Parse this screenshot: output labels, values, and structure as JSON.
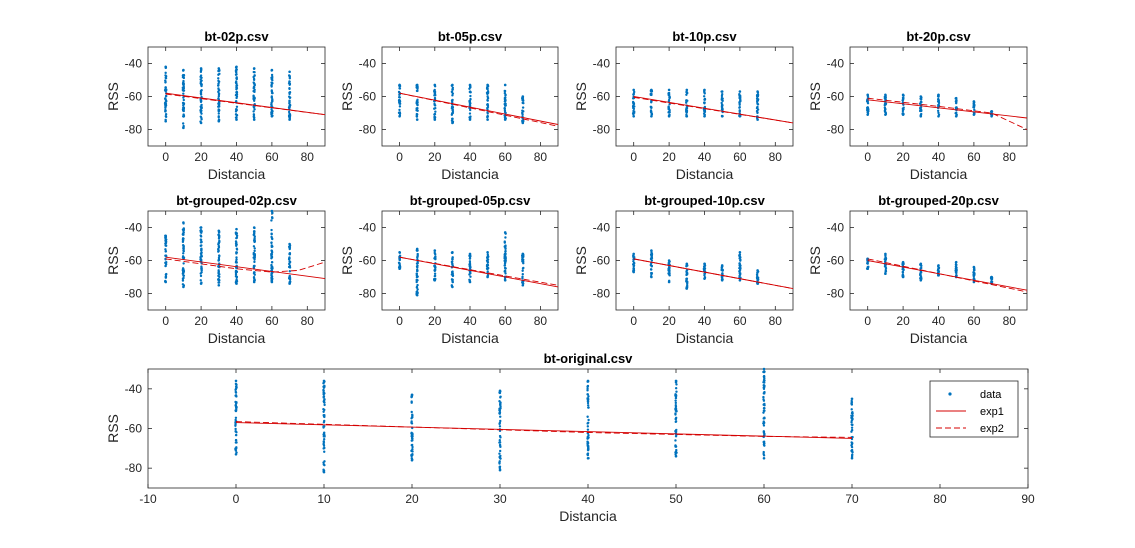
{
  "colors": {
    "data": "#0072bd",
    "exp1": "#d40000",
    "exp2": "#d40000",
    "axis": "#262626"
  },
  "legend": {
    "items": [
      "data",
      "exp1",
      "exp2"
    ],
    "position": "top-right"
  },
  "chart_data": [
    {
      "type": "scatter",
      "title": "bt-02p.csv",
      "xlabel": "Distancia",
      "ylabel": "RSS",
      "xlim": [
        -10,
        90
      ],
      "ylim": [
        -90,
        -30
      ],
      "xticks": [
        "0",
        "20",
        "40",
        "60",
        "80"
      ],
      "xtick_values": [
        0,
        20,
        40,
        60,
        80
      ],
      "yticks": [
        "-40",
        "-60",
        "-80"
      ],
      "ytick_values": [
        -40,
        -60,
        -80
      ],
      "points": [
        [
          0,
          -42,
          -75
        ],
        [
          10,
          -44,
          -79
        ],
        [
          20,
          -43,
          -76
        ],
        [
          30,
          -43,
          -75
        ],
        [
          40,
          -42,
          -74
        ],
        [
          50,
          -43,
          -74
        ],
        [
          60,
          -44,
          -72
        ],
        [
          70,
          -45,
          -74
        ]
      ],
      "series": [
        {
          "name": "exp1",
          "values": [
            [
              0,
              -58
            ],
            [
              90,
              -71
            ]
          ]
        },
        {
          "name": "exp2",
          "values": [
            [
              0,
              -58.5
            ],
            [
              90,
              -71
            ]
          ]
        }
      ]
    },
    {
      "type": "scatter",
      "title": "bt-05p.csv",
      "xlabel": "Distancia",
      "ylabel": "RSS",
      "xlim": [
        -10,
        90
      ],
      "ylim": [
        -90,
        -30
      ],
      "xticks": [
        "0",
        "20",
        "40",
        "60",
        "80"
      ],
      "xtick_values": [
        0,
        20,
        40,
        60,
        80
      ],
      "yticks": [
        "-40",
        "-60",
        "-80"
      ],
      "ytick_values": [
        -40,
        -60,
        -80
      ],
      "points": [
        [
          0,
          -53,
          -72
        ],
        [
          10,
          -53,
          -74
        ],
        [
          20,
          -53,
          -74
        ],
        [
          30,
          -53,
          -76
        ],
        [
          40,
          -53,
          -74
        ],
        [
          50,
          -53,
          -74
        ],
        [
          60,
          -53,
          -74
        ],
        [
          70,
          -60,
          -76
        ]
      ],
      "series": [
        {
          "name": "exp1",
          "values": [
            [
              0,
              -58
            ],
            [
              90,
              -77
            ]
          ]
        },
        {
          "name": "exp2",
          "values": [
            [
              0,
              -58
            ],
            [
              90,
              -78
            ]
          ]
        }
      ]
    },
    {
      "type": "scatter",
      "title": "bt-10p.csv",
      "xlabel": "Distancia",
      "ylabel": "RSS",
      "xlim": [
        -10,
        90
      ],
      "ylim": [
        -90,
        -30
      ],
      "xticks": [
        "0",
        "20",
        "40",
        "60",
        "80"
      ],
      "xtick_values": [
        0,
        20,
        40,
        60,
        80
      ],
      "yticks": [
        "-40",
        "-60",
        "-80"
      ],
      "ytick_values": [
        -40,
        -60,
        -80
      ],
      "points": [
        [
          0,
          -56,
          -72
        ],
        [
          10,
          -56,
          -72
        ],
        [
          20,
          -56,
          -72
        ],
        [
          30,
          -56,
          -72
        ],
        [
          40,
          -56,
          -72
        ],
        [
          50,
          -57,
          -72
        ],
        [
          60,
          -57,
          -72
        ],
        [
          70,
          -57,
          -74
        ]
      ],
      "series": [
        {
          "name": "exp1",
          "values": [
            [
              0,
              -60
            ],
            [
              90,
              -76
            ]
          ]
        },
        {
          "name": "exp2",
          "values": [
            [
              0,
              -60.5
            ],
            [
              90,
              -76
            ]
          ]
        }
      ]
    },
    {
      "type": "scatter",
      "title": "bt-20p.csv",
      "xlabel": "Distancia",
      "ylabel": "RSS",
      "xlim": [
        -10,
        90
      ],
      "ylim": [
        -90,
        -30
      ],
      "xticks": [
        "0",
        "20",
        "40",
        "60",
        "80"
      ],
      "xtick_values": [
        0,
        20,
        40,
        60,
        80
      ],
      "yticks": [
        "-40",
        "-60",
        "-80"
      ],
      "ytick_values": [
        -40,
        -60,
        -80
      ],
      "points": [
        [
          0,
          -59,
          -71
        ],
        [
          10,
          -59,
          -71
        ],
        [
          20,
          -59,
          -71
        ],
        [
          30,
          -60,
          -72
        ],
        [
          40,
          -59,
          -72
        ],
        [
          50,
          -61,
          -72
        ],
        [
          60,
          -63,
          -71
        ],
        [
          70,
          -69,
          -72
        ]
      ],
      "series": [
        {
          "name": "exp1",
          "values": [
            [
              0,
              -62
            ],
            [
              90,
              -73
            ]
          ]
        },
        {
          "name": "exp2",
          "values": [
            [
              0,
              -61
            ],
            [
              40,
              -66
            ],
            [
              70,
              -70
            ],
            [
              90,
              -80
            ]
          ]
        }
      ]
    },
    {
      "type": "scatter",
      "title": "bt-grouped-02p.csv",
      "xlabel": "Distancia",
      "ylabel": "RSS",
      "xlim": [
        -10,
        90
      ],
      "ylim": [
        -90,
        -30
      ],
      "xticks": [
        "0",
        "20",
        "40",
        "60",
        "80"
      ],
      "xtick_values": [
        0,
        20,
        40,
        60,
        80
      ],
      "yticks": [
        "-40",
        "-60",
        "-80"
      ],
      "ytick_values": [
        -40,
        -60,
        -80
      ],
      "points": [
        [
          0,
          -45,
          -73
        ],
        [
          10,
          -37,
          -76
        ],
        [
          20,
          -40,
          -74
        ],
        [
          30,
          -42,
          -75
        ],
        [
          40,
          -41,
          -74
        ],
        [
          50,
          -40,
          -73
        ],
        [
          60,
          -30,
          -73
        ],
        [
          70,
          -50,
          -74
        ]
      ],
      "series": [
        {
          "name": "exp1",
          "values": [
            [
              0,
              -58
            ],
            [
              90,
              -71
            ]
          ]
        },
        {
          "name": "exp2",
          "values": [
            [
              0,
              -59
            ],
            [
              40,
              -65
            ],
            [
              60,
              -67
            ],
            [
              75,
              -66
            ],
            [
              90,
              -61
            ]
          ]
        }
      ]
    },
    {
      "type": "scatter",
      "title": "bt-grouped-05p.csv",
      "xlabel": "Distancia",
      "ylabel": "RSS",
      "xlim": [
        -10,
        90
      ],
      "ylim": [
        -90,
        -30
      ],
      "xticks": [
        "0",
        "20",
        "40",
        "60",
        "80"
      ],
      "xtick_values": [
        0,
        20,
        40,
        60,
        80
      ],
      "yticks": [
        "-40",
        "-60",
        "-80"
      ],
      "ytick_values": [
        -40,
        -60,
        -80
      ],
      "points": [
        [
          0,
          -55,
          -65
        ],
        [
          10,
          -53,
          -81
        ],
        [
          20,
          -54,
          -72
        ],
        [
          30,
          -55,
          -76
        ],
        [
          40,
          -56,
          -73
        ],
        [
          50,
          -55,
          -70
        ],
        [
          60,
          -43,
          -72
        ],
        [
          70,
          -56,
          -75
        ]
      ],
      "series": [
        {
          "name": "exp1",
          "values": [
            [
              0,
              -58
            ],
            [
              90,
              -76
            ]
          ]
        },
        {
          "name": "exp2",
          "values": [
            [
              0,
              -58
            ],
            [
              90,
              -75
            ]
          ]
        }
      ]
    },
    {
      "type": "scatter",
      "title": "bt-grouped-10p.csv",
      "xlabel": "Distancia",
      "ylabel": "RSS",
      "xlim": [
        -10,
        90
      ],
      "ylim": [
        -90,
        -30
      ],
      "xticks": [
        "0",
        "20",
        "40",
        "60",
        "80"
      ],
      "xtick_values": [
        0,
        20,
        40,
        60,
        80
      ],
      "yticks": [
        "-40",
        "-60",
        "-80"
      ],
      "ytick_values": [
        -40,
        -60,
        -80
      ],
      "points": [
        [
          0,
          -56,
          -67
        ],
        [
          10,
          -54,
          -70
        ],
        [
          20,
          -60,
          -73
        ],
        [
          30,
          -62,
          -77
        ],
        [
          40,
          -62,
          -71
        ],
        [
          50,
          -63,
          -72
        ],
        [
          60,
          -55,
          -72
        ],
        [
          70,
          -66,
          -74
        ]
      ],
      "series": [
        {
          "name": "exp1",
          "values": [
            [
              0,
              -59
            ],
            [
              90,
              -77
            ]
          ]
        },
        {
          "name": "exp2",
          "values": [
            [
              0,
              -59
            ],
            [
              90,
              -77
            ]
          ]
        }
      ]
    },
    {
      "type": "scatter",
      "title": "bt-grouped-20p.csv",
      "xlabel": "Distancia",
      "ylabel": "RSS",
      "xlim": [
        -10,
        90
      ],
      "ylim": [
        -90,
        -30
      ],
      "xticks": [
        "0",
        "20",
        "40",
        "60",
        "80"
      ],
      "xtick_values": [
        0,
        20,
        40,
        60,
        80
      ],
      "yticks": [
        "-40",
        "-60",
        "-80"
      ],
      "ytick_values": [
        -40,
        -60,
        -80
      ],
      "points": [
        [
          0,
          -59,
          -65
        ],
        [
          10,
          -56,
          -68
        ],
        [
          20,
          -61,
          -70
        ],
        [
          30,
          -62,
          -72
        ],
        [
          40,
          -63,
          -69
        ],
        [
          50,
          -61,
          -70
        ],
        [
          60,
          -64,
          -73
        ],
        [
          70,
          -70,
          -74
        ]
      ],
      "series": [
        {
          "name": "exp1",
          "values": [
            [
              0,
              -60
            ],
            [
              90,
              -78
            ]
          ]
        },
        {
          "name": "exp2",
          "values": [
            [
              0,
              -59
            ],
            [
              90,
              -79
            ]
          ]
        }
      ]
    },
    {
      "type": "scatter",
      "title": "bt-original.csv",
      "xlabel": "Distancia",
      "ylabel": "RSS",
      "xlim": [
        -10,
        90
      ],
      "ylim": [
        -90,
        -30
      ],
      "xticks": [
        "-10",
        "0",
        "10",
        "20",
        "30",
        "40",
        "50",
        "60",
        "70",
        "80",
        "90"
      ],
      "xtick_values": [
        -10,
        0,
        10,
        20,
        30,
        40,
        50,
        60,
        70,
        80,
        90
      ],
      "yticks": [
        "-40",
        "-60",
        "-80"
      ],
      "ytick_values": [
        -40,
        -60,
        -80
      ],
      "points": [
        [
          0,
          -36,
          -73
        ],
        [
          10,
          -36,
          -82
        ],
        [
          20,
          -43,
          -76
        ],
        [
          30,
          -41,
          -81
        ],
        [
          40,
          -36,
          -75
        ],
        [
          50,
          -36,
          -74
        ],
        [
          60,
          -30,
          -75
        ],
        [
          70,
          -45,
          -75
        ]
      ],
      "series": [
        {
          "name": "exp1",
          "values": [
            [
              0,
              -57
            ],
            [
              70,
              -65
            ]
          ]
        },
        {
          "name": "exp2",
          "values": [
            [
              0,
              -56.5
            ],
            [
              40,
              -62
            ],
            [
              60,
              -64
            ],
            [
              70,
              -64.5
            ]
          ]
        }
      ],
      "legend": true
    }
  ]
}
